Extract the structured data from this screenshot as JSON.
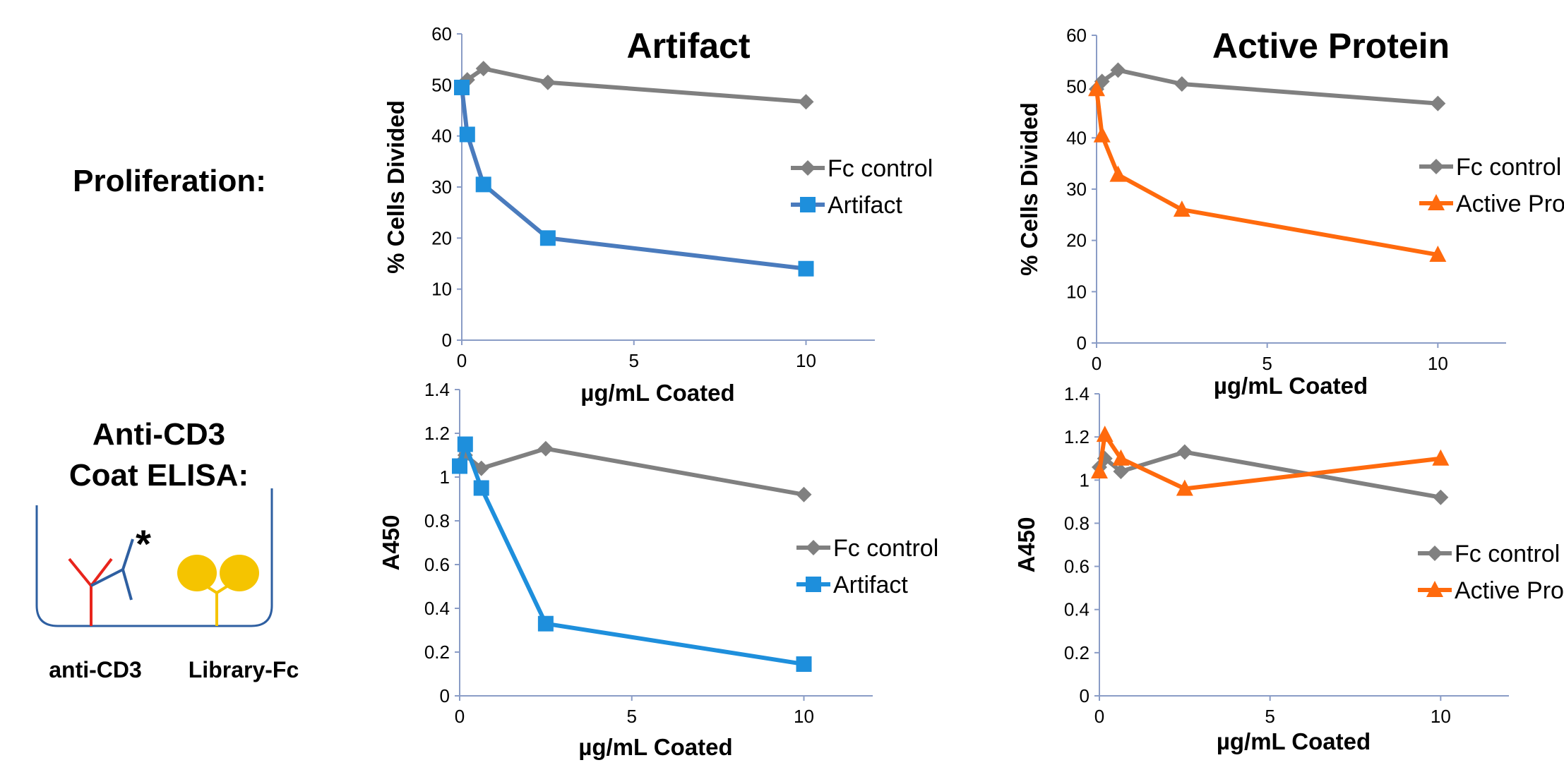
{
  "row_labels": {
    "proliferation": "Proliferation:",
    "elisa_line1": "Anti-CD3",
    "elisa_line2": "Coat ELISA:"
  },
  "diagram": {
    "left_label": "anti-CD3",
    "right_label": "Library-Fc",
    "asterisk": "*",
    "colors": {
      "well": "#2e5fa1",
      "anti_cd3": "#e8241c",
      "artifact_ab": "#2e5fa1",
      "library_fc": "#f5c400"
    }
  },
  "chart_data": [
    {
      "id": "prolif-artifact",
      "type": "line",
      "title": "Artifact",
      "xlabel": "µg/mL Coated",
      "ylabel": "% Cells Divided",
      "xlim": [
        0,
        12
      ],
      "ylim": [
        0,
        60
      ],
      "xticks": [
        0,
        5,
        10
      ],
      "yticks": [
        0,
        10,
        20,
        30,
        40,
        50,
        60
      ],
      "yticklabels": [
        "0",
        "10",
        "20",
        "30",
        "40",
        "50",
        "60"
      ],
      "legend_position": "right",
      "series": [
        {
          "name": "Fc control",
          "marker": "diamond",
          "color": "#808080",
          "x": [
            0,
            0.16,
            0.63,
            2.5,
            10
          ],
          "y": [
            49.5,
            51,
            53.2,
            50.5,
            46.7
          ]
        },
        {
          "name": "Artifact",
          "marker": "square",
          "color": "#4a7bbd",
          "marker_color": "#1e8fdc",
          "x": [
            0,
            0.16,
            0.63,
            2.5,
            10
          ],
          "y": [
            49.5,
            40.3,
            30.5,
            20,
            14
          ]
        }
      ]
    },
    {
      "id": "prolif-active",
      "type": "line",
      "title": "Active Protein",
      "xlabel": "µg/mL Coated",
      "ylabel": "% Cells Divided",
      "xlim": [
        0,
        12
      ],
      "ylim": [
        0,
        60
      ],
      "xticks": [
        0,
        5,
        10
      ],
      "yticks": [
        0,
        10,
        20,
        30,
        40,
        50,
        60
      ],
      "yticklabels": [
        "0",
        "10",
        "20",
        "30",
        "40",
        "50",
        "60"
      ],
      "legend_position": "right",
      "series": [
        {
          "name": "Fc control",
          "marker": "diamond",
          "color": "#808080",
          "x": [
            0,
            0.16,
            0.63,
            2.5,
            10
          ],
          "y": [
            49.5,
            51,
            53.2,
            50.5,
            46.7
          ]
        },
        {
          "name": "Active Protein",
          "marker": "triangle",
          "color": "#ff6a0d",
          "x": [
            0,
            0.16,
            0.63,
            2.5,
            10
          ],
          "y": [
            49.5,
            40.5,
            32.8,
            26,
            17.2
          ]
        }
      ]
    },
    {
      "id": "elisa-artifact",
      "type": "line",
      "title": "",
      "xlabel": "µg/mL Coated",
      "ylabel": "A450",
      "xlim": [
        0,
        12
      ],
      "ylim": [
        0,
        1.4
      ],
      "xticks": [
        0,
        5,
        10
      ],
      "yticks": [
        0,
        0.2,
        0.4,
        0.6,
        0.8,
        1,
        1.2,
        1.4
      ],
      "yticklabels": [
        "0",
        "0.2",
        "0.4",
        "0.6",
        "0.8",
        "1",
        "1.2",
        "1.4"
      ],
      "legend_position": "right",
      "series": [
        {
          "name": "Fc control",
          "marker": "diamond",
          "color": "#808080",
          "x": [
            0,
            0.16,
            0.63,
            2.5,
            10
          ],
          "y": [
            1.06,
            1.1,
            1.04,
            1.13,
            0.92
          ]
        },
        {
          "name": "Artifact",
          "marker": "square",
          "color": "#1e8fdc",
          "x": [
            0,
            0.16,
            0.63,
            2.5,
            10
          ],
          "y": [
            1.05,
            1.15,
            0.95,
            0.33,
            0.145
          ]
        }
      ]
    },
    {
      "id": "elisa-active",
      "type": "line",
      "title": "",
      "xlabel": "µg/mL Coated",
      "ylabel": "A450",
      "xlim": [
        0,
        12
      ],
      "ylim": [
        0,
        1.4
      ],
      "xticks": [
        0,
        5,
        10
      ],
      "yticks": [
        0,
        0.2,
        0.4,
        0.6,
        0.8,
        1,
        1.2,
        1.4
      ],
      "yticklabels": [
        "0",
        "0.2",
        "0.4",
        "0.6",
        "0.8",
        "1",
        "1.2",
        "1.4"
      ],
      "legend_position": "right",
      "series": [
        {
          "name": "Fc control",
          "marker": "diamond",
          "color": "#808080",
          "x": [
            0,
            0.16,
            0.63,
            2.5,
            10
          ],
          "y": [
            1.06,
            1.1,
            1.04,
            1.13,
            0.92
          ]
        },
        {
          "name": "Active Protein",
          "marker": "triangle",
          "color": "#ff6a0d",
          "x": [
            0,
            0.16,
            0.63,
            2.5,
            10
          ],
          "y": [
            1.04,
            1.21,
            1.1,
            0.96,
            1.1
          ]
        }
      ]
    }
  ]
}
